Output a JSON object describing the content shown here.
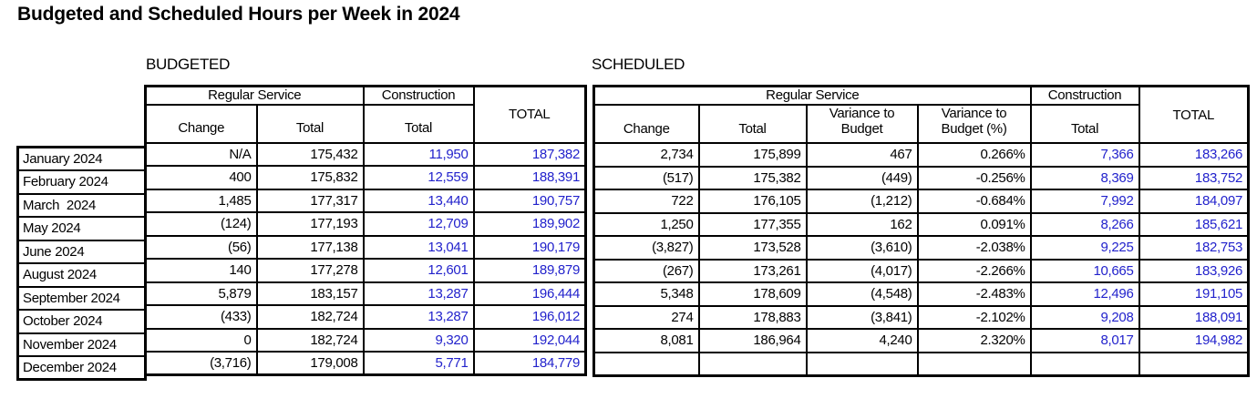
{
  "title": "Budgeted and Scheduled Hours per Week in 2024",
  "colors": {
    "value_blue": "#2222cc",
    "text_black": "#000000",
    "border_black": "#000000",
    "background": "#ffffff"
  },
  "budgeted": {
    "label": "BUDGETED",
    "group_headers": {
      "regular_service": "Regular Service",
      "construction": "Construction"
    },
    "col_headers": {
      "change": "Change",
      "regular_total": "Total",
      "construction_total": "Total",
      "grand_total": "TOTAL"
    }
  },
  "scheduled": {
    "label": "SCHEDULED",
    "group_headers": {
      "regular_service": "Regular Service",
      "construction": "Construction"
    },
    "col_headers": {
      "change": "Change",
      "regular_total": "Total",
      "variance_to_budget": "Variance to Budget",
      "variance_to_budget_pct": "Variance to Budget (%)",
      "construction_total": "Total",
      "grand_total": "TOTAL"
    }
  },
  "rows": [
    {
      "month": "January 2024",
      "budgeted": [
        "N/A",
        "175,432",
        "11,950",
        "187,382"
      ],
      "scheduled": [
        "2,734",
        "175,899",
        "467",
        "0.266%",
        "7,366",
        "183,266"
      ]
    },
    {
      "month": "February 2024",
      "budgeted": [
        "400",
        "175,832",
        "12,559",
        "188,391"
      ],
      "scheduled": [
        "(517)",
        "175,382",
        "(449)",
        "-0.256%",
        "8,369",
        "183,752"
      ]
    },
    {
      "month": "March  2024",
      "budgeted": [
        "1,485",
        "177,317",
        "13,440",
        "190,757"
      ],
      "scheduled": [
        "722",
        "176,105",
        "(1,212)",
        "-0.684%",
        "7,992",
        "184,097"
      ]
    },
    {
      "month": "May 2024",
      "budgeted": [
        "(124)",
        "177,193",
        "12,709",
        "189,902"
      ],
      "scheduled": [
        "1,250",
        "177,355",
        "162",
        "0.091%",
        "8,266",
        "185,621"
      ]
    },
    {
      "month": "June 2024",
      "budgeted": [
        "(56)",
        "177,138",
        "13,041",
        "190,179"
      ],
      "scheduled": [
        "(3,827)",
        "173,528",
        "(3,610)",
        "-2.038%",
        "9,225",
        "182,753"
      ]
    },
    {
      "month": "August 2024",
      "budgeted": [
        "140",
        "177,278",
        "12,601",
        "189,879"
      ],
      "scheduled": [
        "(267)",
        "173,261",
        "(4,017)",
        "-2.266%",
        "10,665",
        "183,926"
      ]
    },
    {
      "month": "September 2024",
      "budgeted": [
        "5,879",
        "183,157",
        "13,287",
        "196,444"
      ],
      "scheduled": [
        "5,348",
        "178,609",
        "(4,548)",
        "-2.483%",
        "12,496",
        "191,105"
      ]
    },
    {
      "month": "October 2024",
      "budgeted": [
        "(433)",
        "182,724",
        "13,287",
        "196,012"
      ],
      "scheduled": [
        "274",
        "178,883",
        "(3,841)",
        "-2.102%",
        "9,208",
        "188,091"
      ]
    },
    {
      "month": "November 2024",
      "budgeted": [
        "0",
        "182,724",
        "9,320",
        "192,044"
      ],
      "scheduled": [
        "8,081",
        "186,964",
        "4,240",
        "2.320%",
        "8,017",
        "194,982"
      ]
    },
    {
      "month": "December 2024",
      "budgeted": [
        "(3,716)",
        "179,008",
        "5,771",
        "184,779"
      ],
      "scheduled": [
        "",
        "",
        "",
        "",
        "",
        ""
      ]
    }
  ]
}
